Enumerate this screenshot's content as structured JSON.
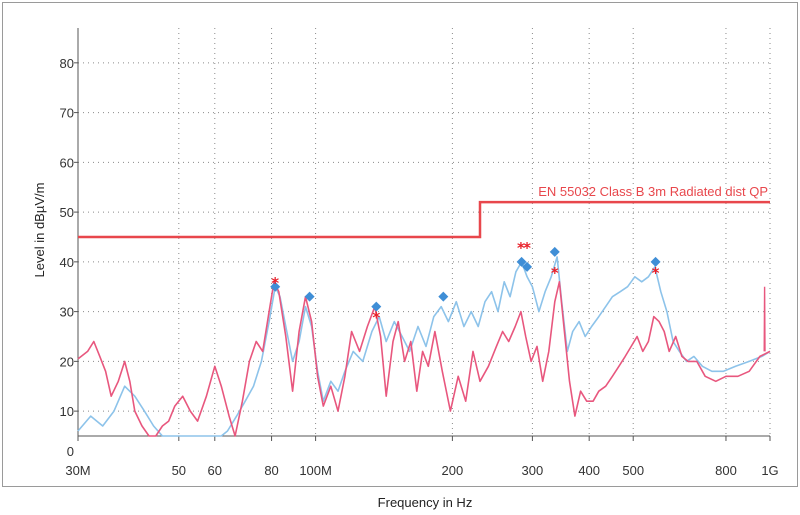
{
  "chart_data": {
    "type": "line",
    "title": "",
    "xlabel": "Frequency in Hz",
    "ylabel": "Level in dBµV/m",
    "x_scale": "log",
    "xlim": [
      30000000,
      1000000000
    ],
    "ylim": [
      5,
      87
    ],
    "grid": true,
    "x_ticks": [
      {
        "value": 30000000,
        "label": "30M"
      },
      {
        "value": 50000000,
        "label": "50"
      },
      {
        "value": 60000000,
        "label": "60"
      },
      {
        "value": 80000000,
        "label": "80"
      },
      {
        "value": 100000000,
        "label": "100M"
      },
      {
        "value": 200000000,
        "label": "200"
      },
      {
        "value": 300000000,
        "label": "300"
      },
      {
        "value": 400000000,
        "label": "400"
      },
      {
        "value": 500000000,
        "label": "500"
      },
      {
        "value": 800000000,
        "label": "800"
      },
      {
        "value": 1000000000,
        "label": "1G"
      }
    ],
    "y_ticks": [
      {
        "value": 0,
        "label": "0"
      },
      {
        "value": 10,
        "label": "10"
      },
      {
        "value": 20,
        "label": "20"
      },
      {
        "value": 30,
        "label": "30"
      },
      {
        "value": 40,
        "label": "40"
      },
      {
        "value": 50,
        "label": "50"
      },
      {
        "value": 60,
        "label": "60"
      },
      {
        "value": 70,
        "label": "70"
      },
      {
        "value": 80,
        "label": "80"
      }
    ],
    "limit_line": {
      "label": "EN 55032 Class B 3m Radiated dist QP",
      "color": "#e8474c",
      "points": [
        [
          30000000,
          45
        ],
        [
          230000000,
          45
        ],
        [
          230000000,
          52
        ],
        [
          1000000000,
          52
        ]
      ]
    },
    "series": [
      {
        "color": "#e8577e",
        "values": [
          [
            30000000,
            20.5
          ],
          [
            31500000,
            22
          ],
          [
            32500000,
            24
          ],
          [
            33500000,
            21
          ],
          [
            34500000,
            18
          ],
          [
            35500000,
            13
          ],
          [
            36800000,
            16
          ],
          [
            38000000,
            20
          ],
          [
            39000000,
            16
          ],
          [
            40000000,
            10
          ],
          [
            41500000,
            7
          ],
          [
            43000000,
            4
          ],
          [
            44500000,
            2
          ],
          [
            46000000,
            7
          ],
          [
            47500000,
            8
          ],
          [
            49000000,
            11
          ],
          [
            51000000,
            13
          ],
          [
            53000000,
            10
          ],
          [
            55000000,
            8
          ],
          [
            57500000,
            13
          ],
          [
            60000000,
            19
          ],
          [
            62000000,
            15
          ],
          [
            64500000,
            9
          ],
          [
            66500000,
            5
          ],
          [
            69000000,
            12
          ],
          [
            71500000,
            20
          ],
          [
            74000000,
            24
          ],
          [
            76500000,
            22
          ],
          [
            79000000,
            30
          ],
          [
            81000000,
            36
          ],
          [
            83000000,
            34
          ],
          [
            86000000,
            25
          ],
          [
            89000000,
            14
          ],
          [
            92000000,
            26
          ],
          [
            95000000,
            33
          ],
          [
            98000000,
            28
          ],
          [
            101000000,
            17
          ],
          [
            104000000,
            11
          ],
          [
            108000000,
            15
          ],
          [
            112000000,
            10
          ],
          [
            116000000,
            17
          ],
          [
            120000000,
            26
          ],
          [
            125000000,
            22
          ],
          [
            130000000,
            27
          ],
          [
            135000000,
            31
          ],
          [
            139000000,
            25
          ],
          [
            143000000,
            13
          ],
          [
            148000000,
            24
          ],
          [
            152000000,
            28
          ],
          [
            157000000,
            20
          ],
          [
            162000000,
            24
          ],
          [
            167000000,
            14
          ],
          [
            172000000,
            22
          ],
          [
            177000000,
            19
          ],
          [
            183000000,
            26
          ],
          [
            190000000,
            18
          ],
          [
            198000000,
            10
          ],
          [
            206000000,
            17
          ],
          [
            214000000,
            12
          ],
          [
            222000000,
            22
          ],
          [
            230000000,
            16
          ],
          [
            240000000,
            19
          ],
          [
            250000000,
            23
          ],
          [
            258000000,
            26
          ],
          [
            266000000,
            24
          ],
          [
            275000000,
            27
          ],
          [
            283000000,
            30
          ],
          [
            290000000,
            25
          ],
          [
            298000000,
            20
          ],
          [
            307000000,
            23
          ],
          [
            316000000,
            16
          ],
          [
            326000000,
            22
          ],
          [
            336000000,
            32
          ],
          [
            344000000,
            36
          ],
          [
            352000000,
            27
          ],
          [
            362000000,
            16
          ],
          [
            372000000,
            9
          ],
          [
            383000000,
            14
          ],
          [
            395000000,
            12
          ],
          [
            408000000,
            12
          ],
          [
            420000000,
            14
          ],
          [
            435000000,
            15
          ],
          [
            450000000,
            17
          ],
          [
            465000000,
            19
          ],
          [
            480000000,
            21
          ],
          [
            495000000,
            23
          ],
          [
            510000000,
            25
          ],
          [
            525000000,
            22
          ],
          [
            540000000,
            24
          ],
          [
            555000000,
            29
          ],
          [
            570000000,
            28
          ],
          [
            585000000,
            26
          ],
          [
            600000000,
            22
          ],
          [
            620000000,
            25
          ],
          [
            640000000,
            21
          ],
          [
            660000000,
            20
          ],
          [
            690000000,
            20
          ],
          [
            720000000,
            17
          ],
          [
            760000000,
            16
          ],
          [
            800000000,
            17
          ],
          [
            850000000,
            17
          ],
          [
            900000000,
            18
          ],
          [
            950000000,
            21
          ],
          [
            1000000000,
            22
          ]
        ]
      },
      {
        "color": "#8dc3ea",
        "values": [
          [
            30000000,
            6
          ],
          [
            32000000,
            9
          ],
          [
            34000000,
            7
          ],
          [
            36000000,
            10
          ],
          [
            38000000,
            15
          ],
          [
            40000000,
            13
          ],
          [
            42000000,
            10
          ],
          [
            44000000,
            7
          ],
          [
            46000000,
            4
          ],
          [
            48000000,
            2
          ],
          [
            50000000,
            3
          ],
          [
            55000000,
            2
          ],
          [
            60000000,
            4
          ],
          [
            62000000,
            2
          ],
          [
            64000000,
            6
          ],
          [
            67000000,
            9
          ],
          [
            70000000,
            12
          ],
          [
            73000000,
            15
          ],
          [
            76000000,
            20
          ],
          [
            79000000,
            28
          ],
          [
            81500000,
            35
          ],
          [
            83500000,
            33
          ],
          [
            86000000,
            27
          ],
          [
            89000000,
            20
          ],
          [
            92000000,
            24
          ],
          [
            95000000,
            31
          ],
          [
            98000000,
            27
          ],
          [
            101000000,
            18
          ],
          [
            104000000,
            12
          ],
          [
            108000000,
            16
          ],
          [
            112000000,
            14
          ],
          [
            116000000,
            18
          ],
          [
            121000000,
            22
          ],
          [
            127000000,
            20
          ],
          [
            133000000,
            26
          ],
          [
            138000000,
            29
          ],
          [
            143000000,
            24
          ],
          [
            149000000,
            28
          ],
          [
            155000000,
            25
          ],
          [
            161000000,
            22
          ],
          [
            168000000,
            27
          ],
          [
            175000000,
            23
          ],
          [
            182000000,
            29
          ],
          [
            189000000,
            31
          ],
          [
            196000000,
            28
          ],
          [
            204000000,
            32
          ],
          [
            212000000,
            27
          ],
          [
            220000000,
            30
          ],
          [
            228000000,
            27
          ],
          [
            236000000,
            32
          ],
          [
            244000000,
            34
          ],
          [
            252000000,
            30
          ],
          [
            260000000,
            36
          ],
          [
            268000000,
            33
          ],
          [
            276000000,
            38
          ],
          [
            284000000,
            40
          ],
          [
            292000000,
            37
          ],
          [
            300000000,
            35
          ],
          [
            310000000,
            30
          ],
          [
            320000000,
            34
          ],
          [
            330000000,
            37
          ],
          [
            340000000,
            41
          ],
          [
            348000000,
            32
          ],
          [
            358000000,
            22
          ],
          [
            368000000,
            26
          ],
          [
            380000000,
            28
          ],
          [
            392000000,
            25
          ],
          [
            405000000,
            27
          ],
          [
            420000000,
            29
          ],
          [
            435000000,
            31
          ],
          [
            450000000,
            33
          ],
          [
            468000000,
            34
          ],
          [
            486000000,
            35
          ],
          [
            504000000,
            37
          ],
          [
            522000000,
            36
          ],
          [
            540000000,
            37
          ],
          [
            558000000,
            39
          ],
          [
            575000000,
            34
          ],
          [
            593000000,
            30
          ],
          [
            612000000,
            24
          ],
          [
            632000000,
            22
          ],
          [
            655000000,
            20
          ],
          [
            680000000,
            21
          ],
          [
            710000000,
            19
          ],
          [
            745000000,
            18
          ],
          [
            790000000,
            18
          ],
          [
            840000000,
            19
          ],
          [
            900000000,
            20
          ],
          [
            960000000,
            21
          ],
          [
            1000000000,
            22
          ]
        ]
      }
    ],
    "markers_diamond": {
      "color": "#3f8ed6",
      "points": [
        [
          81500000,
          35
        ],
        [
          97000000,
          33
        ],
        [
          136000000,
          31
        ],
        [
          191000000,
          33
        ],
        [
          284000000,
          40
        ],
        [
          292000000,
          39
        ],
        [
          336000000,
          42
        ],
        [
          560000000,
          40
        ]
      ]
    },
    "markers_star": {
      "color": "#e8202a",
      "points": [
        [
          81500000,
          36
        ],
        [
          136000000,
          29
        ],
        [
          283000000,
          43
        ],
        [
          292000000,
          43
        ],
        [
          336000000,
          38
        ],
        [
          560000000,
          38
        ]
      ]
    },
    "spike": {
      "color": "#e8577e",
      "points": [
        [
          971000000,
          22
        ],
        [
          973000000,
          35
        ],
        [
          975000000,
          22
        ]
      ]
    }
  }
}
